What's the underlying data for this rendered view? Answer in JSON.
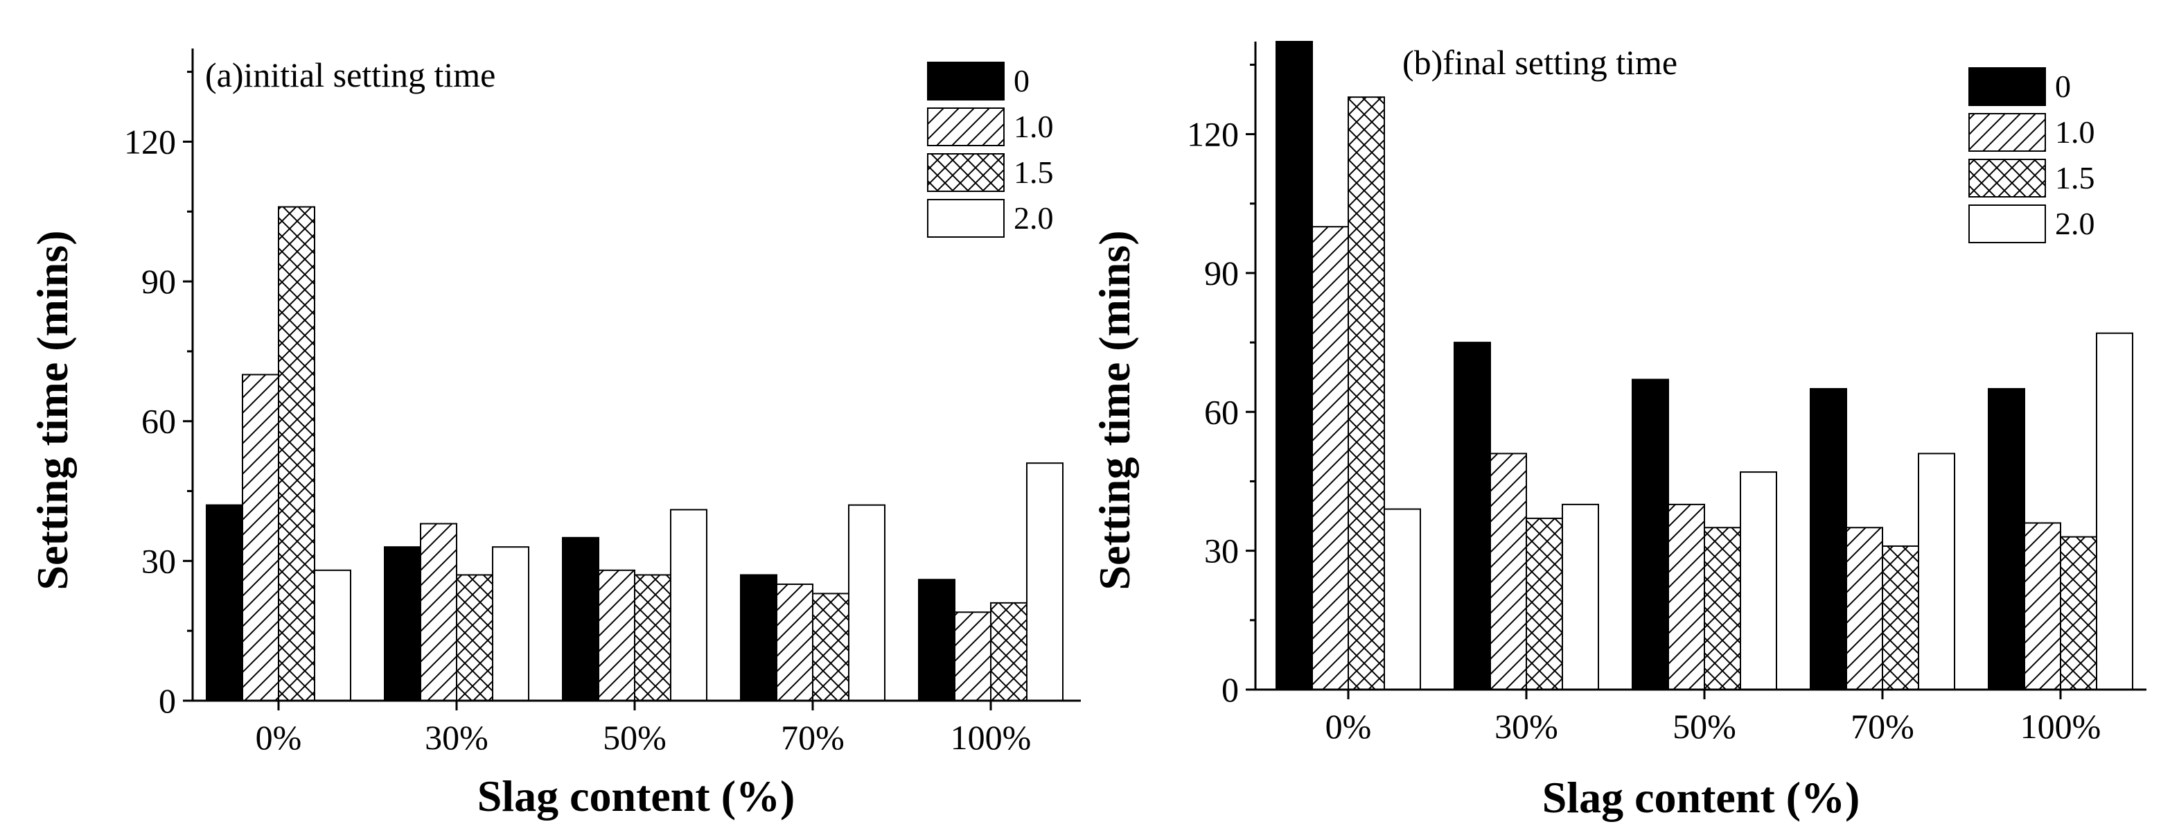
{
  "colors": {
    "ink": "#000000",
    "paper": "#ffffff"
  },
  "chart_data": [
    {
      "type": "bar",
      "title": "(a)initial setting time",
      "xlabel": "Slag content (%)",
      "ylabel": "Setting time (mins)",
      "ylim": [
        0,
        140
      ],
      "yticks": [
        "0",
        "30",
        "60",
        "90",
        "120"
      ],
      "categories": [
        "0%",
        "30%",
        "50%",
        "70%",
        "100%"
      ],
      "legend_position": "top-right",
      "series": [
        {
          "name": "0",
          "pattern": "solid",
          "values": [
            42,
            33,
            35,
            27,
            26
          ]
        },
        {
          "name": "1.0",
          "pattern": "hatch",
          "values": [
            70,
            38,
            28,
            25,
            19
          ]
        },
        {
          "name": "1.5",
          "pattern": "crosshatch",
          "values": [
            106,
            27,
            27,
            23,
            21
          ]
        },
        {
          "name": "2.0",
          "pattern": "empty",
          "values": [
            28,
            33,
            41,
            42,
            51
          ]
        }
      ]
    },
    {
      "type": "bar",
      "title": "(b)final setting time",
      "xlabel": "Slag content (%)",
      "ylabel": "Setting time (mins)",
      "ylim": [
        0,
        140
      ],
      "yticks": [
        "0",
        "30",
        "60",
        "90",
        "120"
      ],
      "categories": [
        "0%",
        "30%",
        "50%",
        "70%",
        "100%"
      ],
      "legend_position": "top-right",
      "series": [
        {
          "name": "0",
          "pattern": "solid",
          "values": [
            140,
            75,
            67,
            65,
            65
          ]
        },
        {
          "name": "1.0",
          "pattern": "hatch",
          "values": [
            100,
            51,
            40,
            35,
            36
          ]
        },
        {
          "name": "1.5",
          "pattern": "crosshatch",
          "values": [
            128,
            37,
            35,
            31,
            33
          ]
        },
        {
          "name": "2.0",
          "pattern": "empty",
          "values": [
            39,
            40,
            47,
            51,
            77
          ]
        }
      ]
    }
  ]
}
